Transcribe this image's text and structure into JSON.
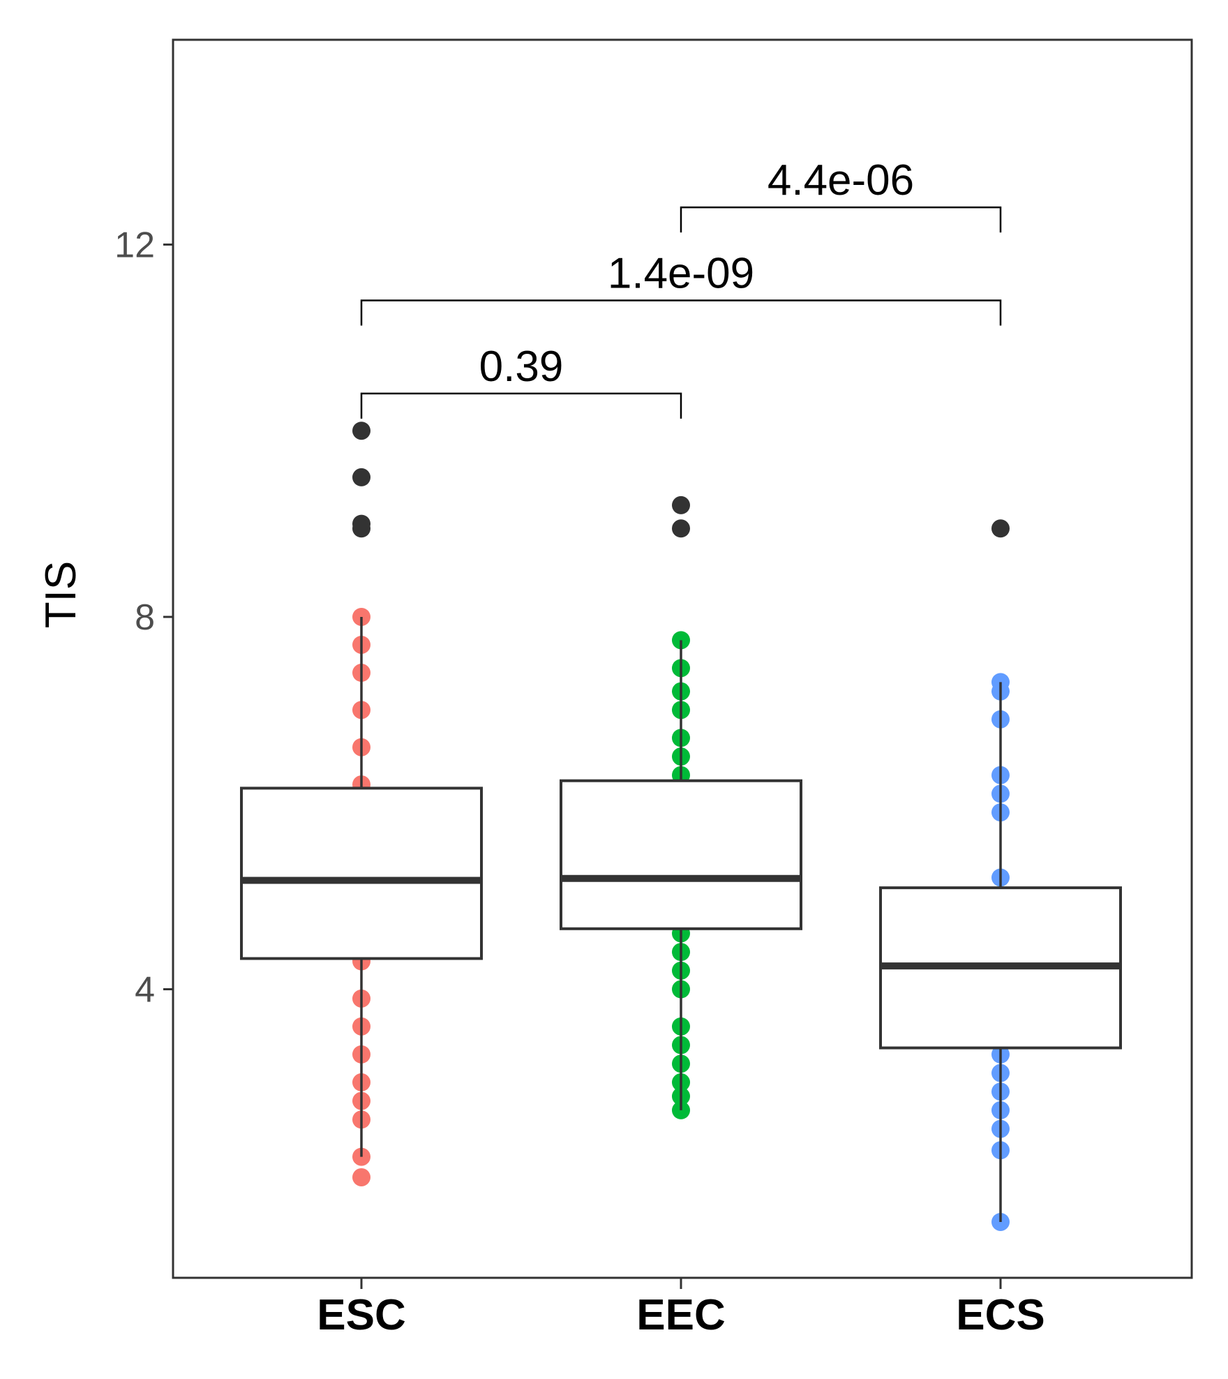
{
  "chart_data": {
    "type": "box",
    "ylabel": "TIS",
    "xlabel": "",
    "ylim": [
      0.9,
      14.2
    ],
    "yticks": [
      4,
      8,
      12
    ],
    "grid": false,
    "legend": "none",
    "categories": [
      "ESC",
      "EEC",
      "ECS"
    ],
    "colors": {
      "ESC": "#F8766D",
      "EEC": "#00BA38",
      "ECS": "#619CFF",
      "outlier": "#333333"
    },
    "boxes": [
      {
        "category": "ESC",
        "whisker_low": 2.2,
        "q1": 4.33,
        "median": 5.17,
        "q3": 6.16,
        "whisker_high": 8.0
      },
      {
        "category": "EEC",
        "whisker_low": 2.7,
        "q1": 4.65,
        "median": 5.19,
        "q3": 6.24,
        "whisker_high": 7.75
      },
      {
        "category": "ECS",
        "whisker_low": 1.5,
        "q1": 3.37,
        "median": 4.25,
        "q3": 5.09,
        "whisker_high": 7.3
      }
    ],
    "points": [
      {
        "category": "ESC",
        "values": [
          1.98,
          2.2,
          2.6,
          2.8,
          3.0,
          3.3,
          3.6,
          3.9,
          4.3,
          4.6,
          5.0,
          5.4,
          5.8,
          6.2,
          6.6,
          7.0,
          7.4,
          7.7,
          8.0
        ]
      },
      {
        "category": "EEC",
        "values": [
          2.7,
          2.85,
          3.0,
          3.2,
          3.4,
          3.6,
          4.0,
          4.2,
          4.4,
          4.6,
          4.8,
          5.2,
          6.3,
          6.5,
          6.7,
          7.0,
          7.2,
          7.45,
          7.75
        ]
      },
      {
        "category": "ECS",
        "values": [
          1.5,
          2.27,
          2.5,
          2.7,
          2.9,
          3.1,
          3.3,
          5.2,
          5.9,
          6.1,
          6.3,
          6.9,
          7.2,
          7.3
        ]
      }
    ],
    "outliers": [
      {
        "category": "ESC",
        "values": [
          10.0,
          9.5,
          9.0,
          8.95
        ]
      },
      {
        "category": "EEC",
        "values": [
          9.2,
          8.95
        ]
      },
      {
        "category": "ECS",
        "values": [
          8.95
        ]
      }
    ],
    "comparisons": [
      {
        "from": "ESC",
        "to": "EEC",
        "label": "0.39",
        "y": 10.4
      },
      {
        "from": "ESC",
        "to": "ECS",
        "label": "1.4e-09",
        "y": 11.4
      },
      {
        "from": "EEC",
        "to": "ECS",
        "label": "4.4e-06",
        "y": 12.4
      }
    ]
  }
}
